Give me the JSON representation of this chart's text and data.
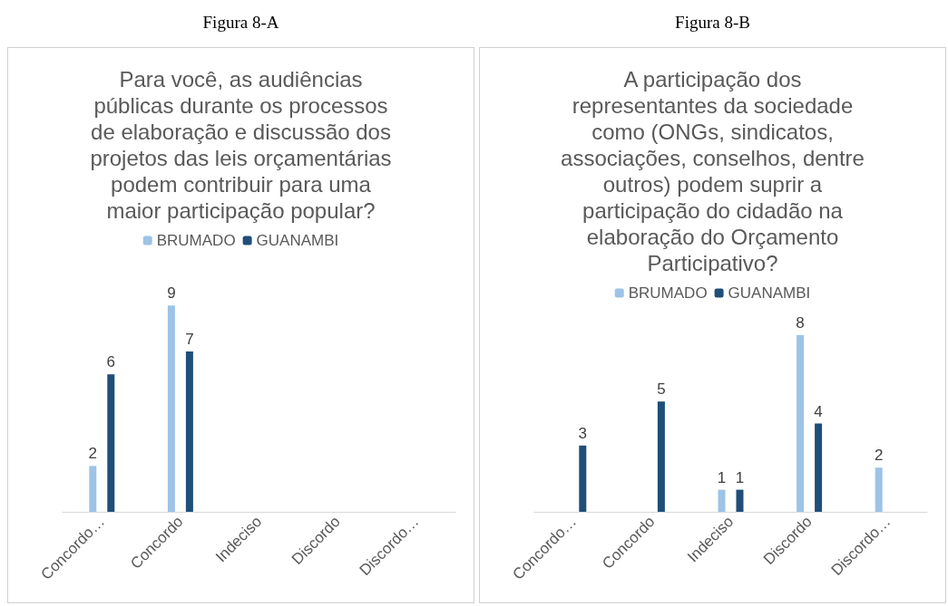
{
  "chart_data": [
    {
      "type": "bar",
      "subtitle": "Figura 8-A",
      "title": "Para você, as audiências públicas durante os processos de elaboração e discussão dos projetos das leis orçamentárias podem contribuir para uma maior participação popular?",
      "categories": [
        "Concordo…",
        "Concordo",
        "Indeciso",
        "Discordo",
        "Discordo…"
      ],
      "series": [
        {
          "name": "BRUMADO",
          "color": "#9dc3e6",
          "values": [
            2,
            9,
            null,
            null,
            null
          ]
        },
        {
          "name": "GUANAMBI",
          "color": "#1f4e79",
          "values": [
            6,
            7,
            null,
            null,
            null
          ]
        }
      ],
      "data_labels": true,
      "legend": "top"
    },
    {
      "type": "bar",
      "subtitle": "Figura 8-B",
      "title": "A participação dos representantes da sociedade como (ONGs, sindicatos, associações, conselhos, dentre outros) podem suprir a participação do cidadão na elaboração do Orçamento Participativo?",
      "categories": [
        "Concordo…",
        "Concordo",
        "Indeciso",
        "Discordo",
        "Discordo…"
      ],
      "series": [
        {
          "name": "BRUMADO",
          "color": "#9dc3e6",
          "values": [
            null,
            null,
            1,
            8,
            2
          ]
        },
        {
          "name": "GUANAMBI",
          "color": "#1f4e79",
          "values": [
            3,
            5,
            1,
            4,
            null
          ]
        }
      ],
      "data_labels": true,
      "legend": "top"
    }
  ]
}
